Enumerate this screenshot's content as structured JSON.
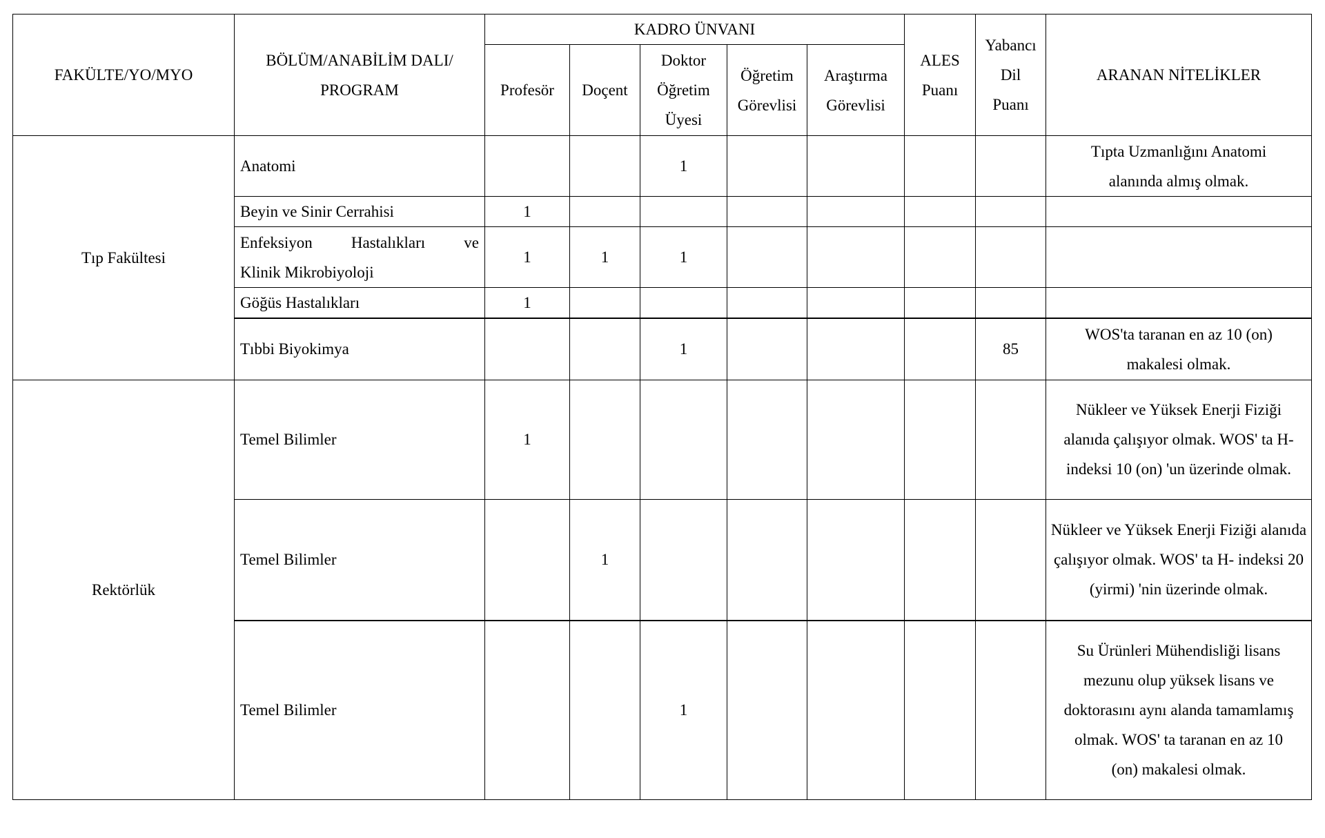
{
  "header": {
    "faculty": "FAKÜLTE/YO/MYO",
    "department": "BÖLÜM/ANABİLİM DALI/ PROGRAM",
    "kadro_group": "KADRO ÜNVANI",
    "kadro": [
      "Profesör",
      "Doçent",
      "Doktor Öğretim Üyesi",
      "Öğretim Görevlisi",
      "Araştırma Görevlisi"
    ],
    "ales": "ALES Puanı",
    "language": "Yabancı Dil Puanı",
    "qualifications": "ARANAN NİTELİKLER"
  },
  "faculties": [
    {
      "name": "Tıp Fakültesi"
    },
    {
      "name": "Rektörlük"
    }
  ],
  "rows": [
    {
      "department": "Anatomi",
      "profesor": "",
      "docent": "",
      "dou": "1",
      "og": "",
      "ag": "",
      "ales": "",
      "dil": "",
      "nitelik": "Tıpta Uzmanlığını Anatomi alanında almış olmak."
    },
    {
      "department": "Beyin ve Sinir Cerrahisi",
      "profesor": "1",
      "docent": "",
      "dou": "",
      "og": "",
      "ag": "",
      "ales": "",
      "dil": "",
      "nitelik": ""
    },
    {
      "department_line1": "Enfeksiyon Hastalıkları ve",
      "department_line2": "Klinik Mikrobiyoloji",
      "profesor": "1",
      "docent": "1",
      "dou": "1",
      "og": "",
      "ag": "",
      "ales": "",
      "dil": "",
      "nitelik": ""
    },
    {
      "department": "Göğüs Hastalıkları",
      "profesor": "1",
      "docent": "",
      "dou": "",
      "og": "",
      "ag": "",
      "ales": "",
      "dil": "",
      "nitelik": ""
    },
    {
      "department": "Tıbbi Biyokimya",
      "profesor": "",
      "docent": "",
      "dou": "1",
      "og": "",
      "ag": "",
      "ales": "",
      "dil": "85",
      "nitelik": "WOS'ta taranan en az 10 (on) makalesi olmak."
    },
    {
      "department": "Temel Bilimler",
      "profesor": "1",
      "docent": "",
      "dou": "",
      "og": "",
      "ag": "",
      "ales": "",
      "dil": "",
      "nitelik": "Nükleer ve Yüksek Enerji Fiziği alanıda çalışıyor olmak. WOS' ta H- indeksi 10 (on) 'un üzerinde olmak."
    },
    {
      "department": "Temel Bilimler",
      "profesor": "",
      "docent": "1",
      "dou": "",
      "og": "",
      "ag": "",
      "ales": "",
      "dil": "",
      "nitelik": "Nükleer ve Yüksek Enerji Fiziği alanıda çalışıyor olmak. WOS' ta H- indeksi 20 (yirmi) 'nin üzerinde olmak."
    },
    {
      "department": "Temel Bilimler",
      "profesor": "",
      "docent": "",
      "dou": "1",
      "og": "",
      "ag": "",
      "ales": "",
      "dil": "",
      "nitelik": "Su Ürünleri Mühendisliği lisans mezunu olup yüksek lisans ve doktorasını aynı alanda tamamlamış olmak. WOS' ta taranan en az 10 (on) makalesi olmak."
    }
  ]
}
